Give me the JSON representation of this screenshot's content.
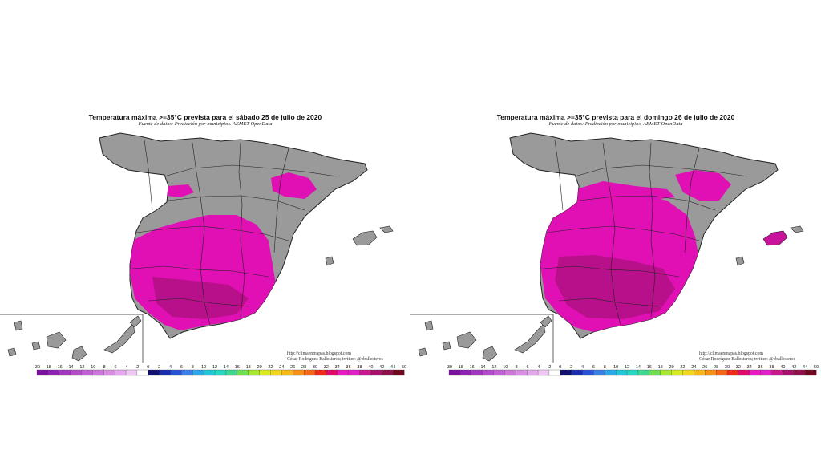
{
  "maps": [
    {
      "title": "Temperatura máxima >=35°C prevista para el sábado 25 de julio de 2020",
      "source": "Fuente de datos: Predicción por municipios. AEMET OpenData",
      "credit_url": "http://climaenmapas.blogspot.com",
      "credit_author": "César Rodríguez Ballesteros; twitter: @cballesteros"
    },
    {
      "title": "Temperatura máxima >=35°C prevista para el domingo 26 de julio de 2020",
      "source": "Fuente de datos: Predicción por municipios. AEMET OpenData",
      "credit_url": "http://climaenmapas.blogspot.com",
      "credit_author": "César Rodríguez Ballesteros; twitter: @cballesteros"
    }
  ],
  "colorbar": {
    "labels": [
      "-30",
      "-18",
      "-16",
      "-14",
      "-12",
      "-10",
      "-8",
      "-6",
      "-4",
      "-2",
      "0",
      "2",
      "4",
      "6",
      "8",
      "10",
      "12",
      "14",
      "16",
      "18",
      "20",
      "22",
      "24",
      "26",
      "28",
      "30",
      "32",
      "34",
      "36",
      "38",
      "40",
      "42",
      "44",
      "50"
    ],
    "colors": [
      "#7a0fa0",
      "#8f22b4",
      "#a335c2",
      "#b54acd",
      "#c35fd6",
      "#cf76dd",
      "#d98ee4",
      "#e3a8eb",
      "#eec8f2",
      "#ffffff",
      "#101070",
      "#1c2cb0",
      "#2a52d6",
      "#3a7ee8",
      "#2aa8e8",
      "#22c8d8",
      "#28d8c0",
      "#40d890",
      "#6ee050",
      "#a8e830",
      "#d8ea20",
      "#f0d820",
      "#f8b818",
      "#f89018",
      "#f46818",
      "#ee2a18",
      "#e00a6a",
      "#e81ac0",
      "#e020c8",
      "#c8188c",
      "#a8106a",
      "#90104a",
      "#700820"
    ]
  },
  "colors": {
    "land": "#9a9a9a",
    "heat": "#e010b4",
    "heat_dark": "#b8108a",
    "border": "#222222"
  }
}
